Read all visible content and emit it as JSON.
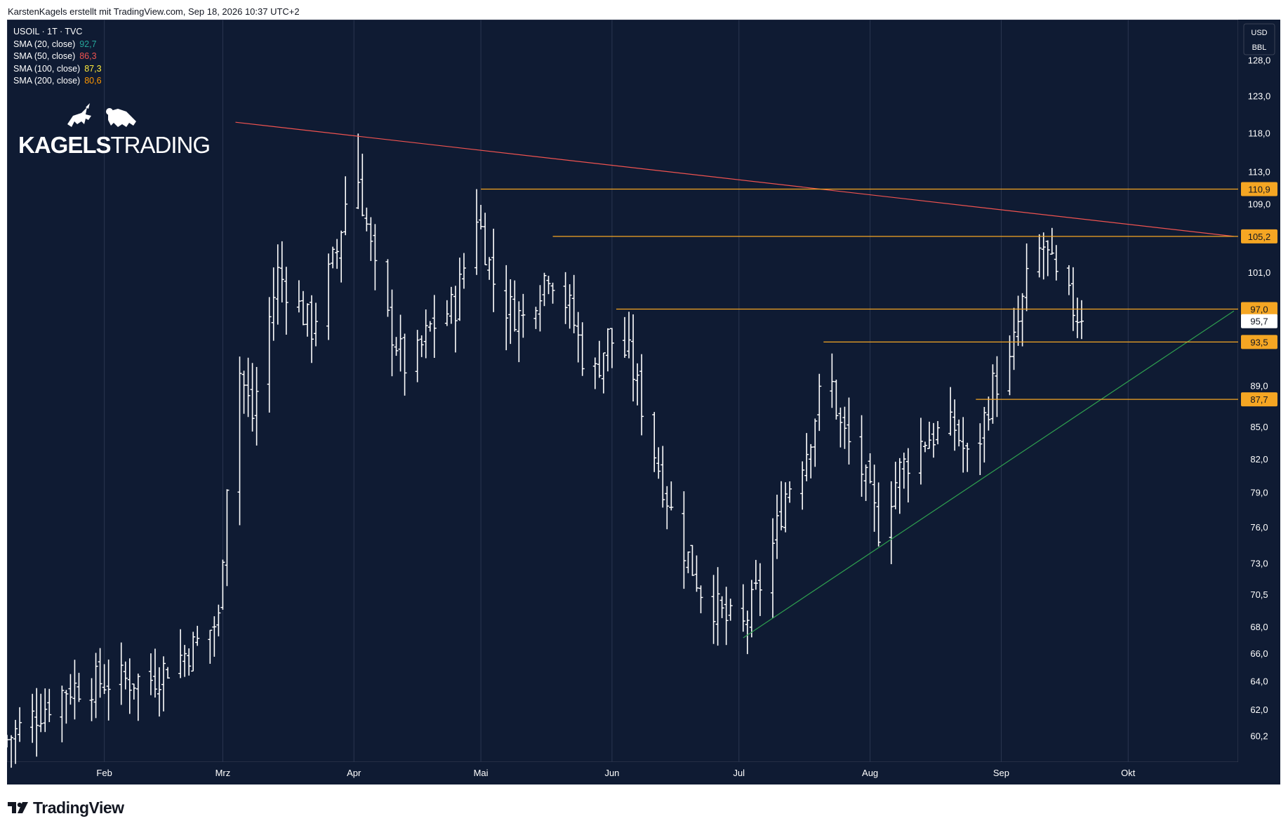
{
  "header": {
    "credit": "KarstenKagels erstellt mit TradingView.com, Sep 18, 2026 10:37 UTC+2"
  },
  "legend": {
    "symbol": "USOIL · 1T · TVC",
    "items": [
      {
        "label": "SMA (20, close)",
        "value": "92,7",
        "color": "#26a69a"
      },
      {
        "label": "SMA (50, close)",
        "value": "86,3",
        "color": "#ef5350"
      },
      {
        "label": "SMA (100, close)",
        "value": "87,3",
        "color": "#ffeb3b"
      },
      {
        "label": "SMA (200, close)",
        "value": "80,6",
        "color": "#ff9800"
      }
    ]
  },
  "logo": {
    "bold": "KAGELS",
    "light": "TRADING"
  },
  "footer": {
    "brand": "TradingView"
  },
  "chart_data": {
    "type": "ohlc-bar",
    "symbol": "USOIL · 1T · TVC",
    "currency": "USD",
    "unit": "BBL",
    "y_scale": "log",
    "y_ticks": [
      60.2,
      62.0,
      64.0,
      66.0,
      68.0,
      70.5,
      73.0,
      76.0,
      79.0,
      82.0,
      85.0,
      89.0,
      101.0,
      109.0,
      113.0,
      118.0,
      123.0,
      128.0
    ],
    "y_tick_labels": [
      "60,2",
      "62,0",
      "64,0",
      "66,0",
      "68,0",
      "70,5",
      "73,0",
      "76,0",
      "79,0",
      "82,0",
      "85,0",
      "89,0",
      "101,0",
      "109,0",
      "113,0",
      "118,0",
      "123,0",
      "128,0"
    ],
    "ylim": [
      58.5,
      134.0
    ],
    "x_month_labels": [
      {
        "label": "Feb",
        "day": 31
      },
      {
        "label": "Mrz",
        "day": 59
      },
      {
        "label": "Apr",
        "day": 90
      },
      {
        "label": "Mai",
        "day": 120
      },
      {
        "label": "Jun",
        "day": 151
      },
      {
        "label": "Jul",
        "day": 181
      },
      {
        "label": "Aug",
        "day": 212
      },
      {
        "label": "Sep",
        "day": 243
      },
      {
        "label": "Okt",
        "day": 273
      }
    ],
    "xlim_days": [
      8,
      299
    ],
    "horizontal_levels": [
      {
        "value": 110.9,
        "label": "110,9",
        "from_day": 120
      },
      {
        "value": 105.2,
        "label": "105,2",
        "from_day": 137
      },
      {
        "value": 97.0,
        "label": "97,0",
        "from_day": 152
      },
      {
        "value": 93.5,
        "label": "93,5",
        "from_day": 201
      },
      {
        "value": 87.7,
        "label": "87,7",
        "from_day": 237
      }
    ],
    "last_price": {
      "value": 95.7,
      "label": "95,7"
    },
    "trendlines": [
      {
        "name": "",
        "color": "#ef5350",
        "points": [
          {
            "day": 62,
            "price": 119.5
          },
          {
            "day": 298,
            "price": 105.2
          }
        ]
      },
      {
        "name": "",
        "color": "#2e9e4f",
        "points": [
          {
            "day": 182,
            "price": 67.2
          },
          {
            "day": 298,
            "price": 96.8
          }
        ]
      }
    ],
    "anchors": [
      {
        "day": 8,
        "price": 60.0
      },
      {
        "day": 22,
        "price": 63.5
      },
      {
        "day": 30,
        "price": 64.0
      },
      {
        "day": 42,
        "price": 64.2
      },
      {
        "day": 52,
        "price": 66.5
      },
      {
        "day": 58,
        "price": 68.5
      },
      {
        "day": 62,
        "price": 92.0
      },
      {
        "day": 66,
        "price": 86.0
      },
      {
        "day": 72,
        "price": 101.0
      },
      {
        "day": 80,
        "price": 95.0
      },
      {
        "day": 86,
        "price": 103.5
      },
      {
        "day": 90,
        "price": 115.0
      },
      {
        "day": 96,
        "price": 98.0
      },
      {
        "day": 103,
        "price": 90.0
      },
      {
        "day": 108,
        "price": 95.0
      },
      {
        "day": 114,
        "price": 97.5
      },
      {
        "day": 119,
        "price": 108.0
      },
      {
        "day": 124,
        "price": 98.0
      },
      {
        "day": 130,
        "price": 96.0
      },
      {
        "day": 136,
        "price": 101.5
      },
      {
        "day": 141,
        "price": 97.0
      },
      {
        "day": 146,
        "price": 89.0
      },
      {
        "day": 150,
        "price": 94.0
      },
      {
        "day": 155,
        "price": 92.0
      },
      {
        "day": 160,
        "price": 84.0
      },
      {
        "day": 166,
        "price": 76.0
      },
      {
        "day": 172,
        "price": 71.0
      },
      {
        "day": 178,
        "price": 68.5
      },
      {
        "day": 182,
        "price": 68.0
      },
      {
        "day": 188,
        "price": 73.0
      },
      {
        "day": 192,
        "price": 79.0
      },
      {
        "day": 197,
        "price": 83.0
      },
      {
        "day": 202,
        "price": 91.0
      },
      {
        "day": 205,
        "price": 85.0
      },
      {
        "day": 210,
        "price": 81.0
      },
      {
        "day": 214,
        "price": 76.0
      },
      {
        "day": 219,
        "price": 81.0
      },
      {
        "day": 225,
        "price": 84.0
      },
      {
        "day": 232,
        "price": 85.0
      },
      {
        "day": 236,
        "price": 81.0
      },
      {
        "day": 241,
        "price": 89.0
      },
      {
        "day": 245,
        "price": 91.0
      },
      {
        "day": 250,
        "price": 102.0
      },
      {
        "day": 253,
        "price": 104.0
      },
      {
        "day": 256,
        "price": 100.0
      },
      {
        "day": 262,
        "price": 95.7
      }
    ]
  }
}
